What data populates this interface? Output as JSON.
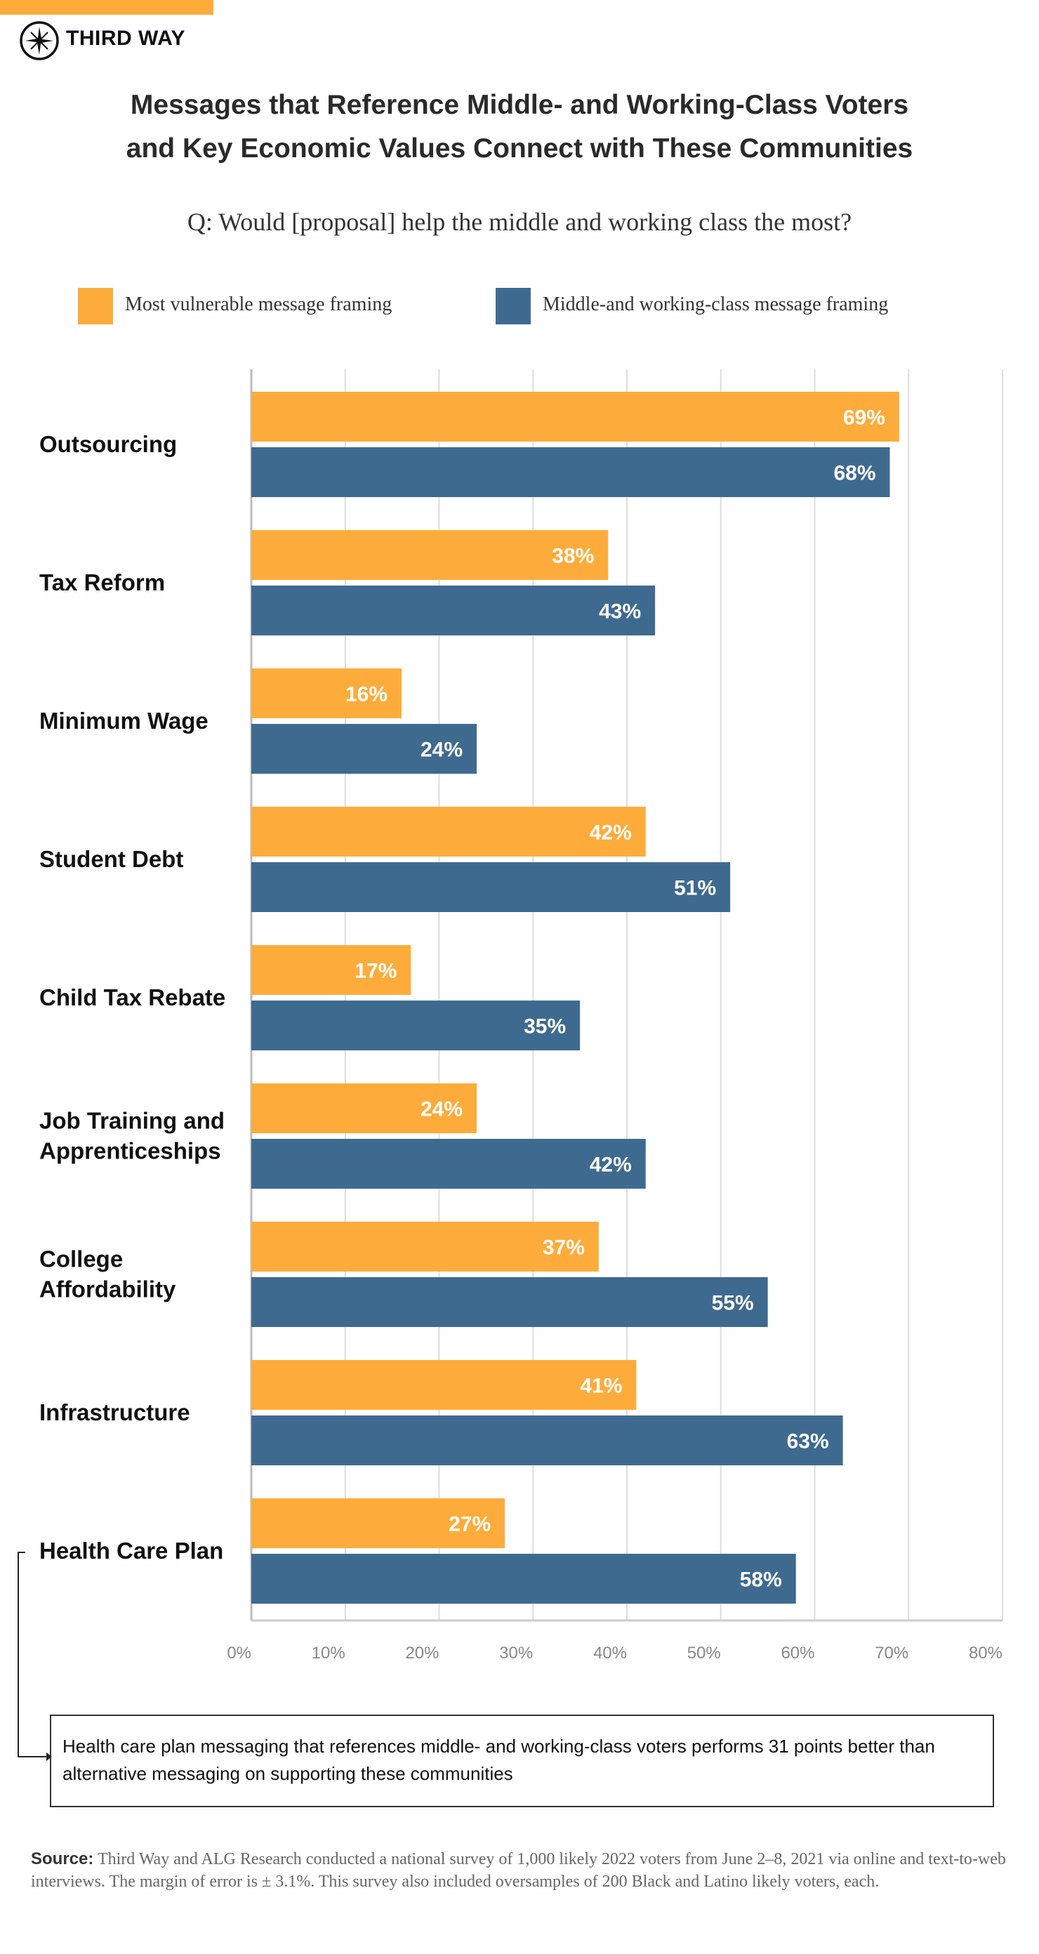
{
  "brand": {
    "name": "THIRD WAY",
    "accent_color": "#FDAC3C"
  },
  "title_lines": [
    "Messages that Reference Middle- and Working-Class Voters",
    "and Key Economic Values Connect with These Communities"
  ],
  "subtitle": "Q: Would [proposal] help the middle and working class the most?",
  "callout": "Health care plan messaging that references middle- and working-class voters performs 31 points better than alternative messaging on supporting these communities",
  "source": {
    "label": "Source:",
    "text": "Third Way and ALG Research conducted a national survey of 1,000 likely 2022 voters from June 2–8, 2021 via online and text-to-web interviews. The margin of error is ± 3.1%. This survey also included oversamples of 200 Black and Latino likely voters, each."
  },
  "chart_data": {
    "type": "bar",
    "orientation": "horizontal",
    "categories": [
      "Outsourcing",
      "Tax Reform",
      "Minimum Wage",
      "Student Debt",
      "Child Tax Rebate",
      "Job Training and Apprenticeships",
      "College Affordability",
      "Infrastructure",
      "Health Care Plan"
    ],
    "category_lines": [
      [
        "Outsourcing"
      ],
      [
        "Tax Reform"
      ],
      [
        "Minimum Wage"
      ],
      [
        "Student Debt"
      ],
      [
        "Child Tax Rebate"
      ],
      [
        "Job Training and",
        "Apprenticeships"
      ],
      [
        "College",
        "Affordability"
      ],
      [
        "Infrastructure"
      ],
      [
        "Health Care Plan"
      ]
    ],
    "series": [
      {
        "name": "Most vulnerable message framing",
        "color": "#FDAC3C",
        "values": [
          69,
          38,
          16,
          42,
          17,
          24,
          37,
          41,
          27
        ]
      },
      {
        "name": "Middle-and working-class message framing",
        "color": "#3F6A8F",
        "values": [
          68,
          43,
          24,
          51,
          35,
          42,
          55,
          63,
          58
        ]
      }
    ],
    "xlim": [
      0,
      80
    ],
    "xticks": [
      "0%",
      "10%",
      "20%",
      "30%",
      "40%",
      "50%",
      "60%",
      "70%",
      "80%"
    ],
    "value_suffix": "%",
    "grid": true,
    "legend": "top"
  }
}
